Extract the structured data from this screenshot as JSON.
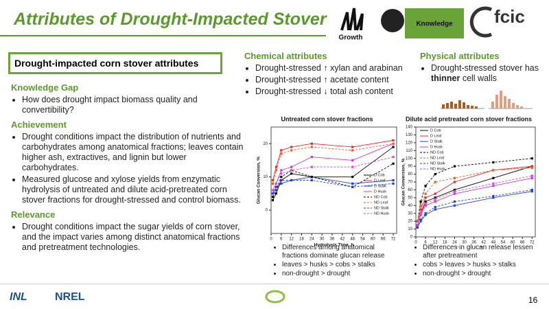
{
  "header": {
    "title": "Attributes of Drought-Impacted Stover",
    "icons": [
      "Growth",
      "Knowledge"
    ],
    "logo": "fcic"
  },
  "left": {
    "box_title": "Drought-impacted corn stover attributes",
    "sections": [
      {
        "heading": "Knowledge Gap",
        "bullets": [
          "How does drought impact biomass quality and convertibility?"
        ]
      },
      {
        "heading": "Achievement",
        "bullets": [
          "Drought conditions impact the distribution of nutrients and carbohydrates among anatomical fractions; leaves contain higher ash, extractives, and lignin but lower carbohydrates.",
          "Measured glucose and xylose yields from enzymatic hydrolysis of untreated and dilute acid-pretreated corn stover fractions for drought-stressed and control biomass."
        ]
      },
      {
        "heading": "Relevance",
        "bullets": [
          "Drought conditions impact the sugar yields of corn stover, and the impact varies among distinct anatomical fractions and pretreatment technologies."
        ]
      }
    ]
  },
  "chemical": {
    "heading": "Chemical attributes",
    "bullets": [
      "Drought-stressed ↑ xylan and arabinan",
      "Drought-stressed ↑ acetate content",
      "Drought-stressed ↓ total ash content"
    ]
  },
  "physical": {
    "heading": "Physical attributes",
    "bullet": [
      "Drought-stressed stover has ",
      "thinner",
      " cell walls"
    ]
  },
  "chart_data": [
    {
      "type": "line",
      "title": "Untreated corn stover fractions",
      "xlabel": "Hydrolysis Time, h",
      "ylabel": "Glucan Conversion, %",
      "x": [
        1,
        3,
        6,
        12,
        24,
        48,
        72
      ],
      "xlim": [
        0,
        74
      ],
      "xticks": [
        0,
        6,
        12,
        18,
        24,
        30,
        36,
        42,
        48,
        54,
        60,
        66,
        72
      ],
      "ylim": [
        -7,
        25
      ],
      "yticks": [
        0,
        10,
        20
      ],
      "legend": "right",
      "series": [
        {
          "name": "D Cob",
          "color": "#000000",
          "linestyle": "solid",
          "values": [
            3,
            5,
            9,
            11,
            10,
            10,
            19
          ]
        },
        {
          "name": "D Leaf",
          "color": "#e8281e",
          "linestyle": "solid",
          "values": [
            9,
            13,
            18,
            19,
            20,
            19,
            21
          ]
        },
        {
          "name": "D Stalk",
          "color": "#1f3fd6",
          "linestyle": "solid",
          "values": [
            5,
            7,
            8,
            9,
            10,
            8,
            9
          ]
        },
        {
          "name": "D Husk",
          "color": "#c43bc9",
          "linestyle": "solid",
          "values": [
            6,
            8,
            12,
            13,
            16,
            15,
            20
          ]
        },
        {
          "name": "ND Cob",
          "color": "#000000",
          "linestyle": "dashed",
          "values": [
            4,
            6,
            10,
            12,
            10,
            7,
            14
          ]
        },
        {
          "name": "ND Leaf",
          "color": "#f05a28",
          "linestyle": "dashed",
          "values": [
            8,
            12,
            17,
            18,
            19,
            18,
            20
          ]
        },
        {
          "name": "ND Stalk",
          "color": "#1f3fd6",
          "linestyle": "dashed",
          "values": [
            5,
            6,
            9,
            9,
            9,
            7,
            8
          ]
        },
        {
          "name": "ND Husk",
          "color": "#e63fe8",
          "linestyle": "dashed",
          "values": [
            6,
            8,
            11,
            12,
            13,
            13,
            16
          ]
        }
      ],
      "notes": [
        "Differences among anatomical fractions dominate glucan release",
        "leaves > husks > cobs > stalks",
        "non-drought > drought"
      ]
    },
    {
      "type": "line",
      "title": "Dilute acid pretreated corn stover fractions",
      "xlabel": "Hydrolysis Time, h",
      "ylabel": "Glucan Conversion, %",
      "x": [
        1,
        3,
        6,
        12,
        24,
        48,
        72
      ],
      "xlim": [
        0,
        74
      ],
      "xticks": [
        0,
        6,
        12,
        18,
        24,
        30,
        36,
        42,
        48,
        54,
        60,
        66,
        72
      ],
      "ylim": [
        0,
        140
      ],
      "yticks": [
        0,
        10,
        20,
        30,
        40,
        50,
        60,
        70,
        80,
        90,
        100,
        110,
        120,
        130,
        140
      ],
      "legend": "upper left",
      "series": [
        {
          "name": "D Cob",
          "color": "#000000",
          "linestyle": "solid",
          "values": [
            15,
            30,
            45,
            50,
            60,
            75,
            90
          ]
        },
        {
          "name": "D Leaf",
          "color": "#e8281e",
          "linestyle": "solid",
          "values": [
            20,
            35,
            50,
            55,
            70,
            85,
            90
          ]
        },
        {
          "name": "D Stalk",
          "color": "#1f3fd6",
          "linestyle": "solid",
          "values": [
            12,
            20,
            28,
            35,
            40,
            50,
            58
          ]
        },
        {
          "name": "D Husk",
          "color": "#c43bc9",
          "linestyle": "solid",
          "values": [
            15,
            28,
            40,
            45,
            55,
            65,
            75
          ]
        },
        {
          "name": "ND Cob",
          "color": "#000000",
          "linestyle": "dashed",
          "values": [
            20,
            45,
            65,
            80,
            90,
            95,
            100
          ]
        },
        {
          "name": "ND Leaf",
          "color": "#f05a28",
          "linestyle": "dashed",
          "values": [
            20,
            40,
            55,
            70,
            75,
            85,
            88
          ]
        },
        {
          "name": "ND Stalk",
          "color": "#1f3fd6",
          "linestyle": "dashed",
          "values": [
            12,
            22,
            30,
            38,
            45,
            52,
            60
          ]
        },
        {
          "name": "ND Husk",
          "color": "#e63fe8",
          "linestyle": "dashed",
          "values": [
            15,
            30,
            42,
            48,
            58,
            68,
            78
          ]
        }
      ],
      "notes": [
        "Differences in glucan release lessen after pretreatment",
        "cobs > leaves > husks > stalks",
        "non-drought > drought"
      ]
    }
  ],
  "footer": {
    "logos": [
      "INL",
      "NREL"
    ],
    "page": "16"
  }
}
